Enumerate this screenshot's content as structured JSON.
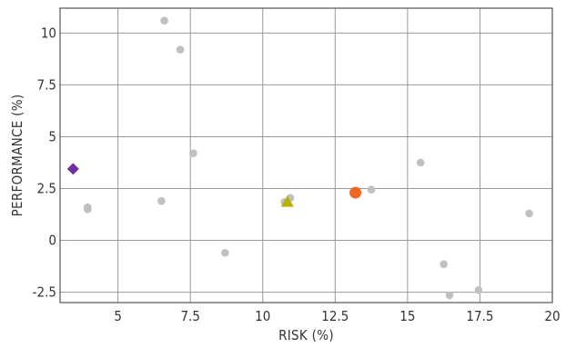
{
  "chart_data": {
    "type": "scatter",
    "xlabel": "RISK (%)",
    "ylabel": "PERFORMANCE (%)",
    "xlim": [
      3,
      20
    ],
    "ylim": [
      -3.0,
      11.2
    ],
    "x_ticks": [
      5,
      7.5,
      10,
      12.5,
      15,
      17.5,
      20
    ],
    "x_tick_labels": [
      "5",
      "7.5",
      "10",
      "12.5",
      "15",
      "17.5",
      "20"
    ],
    "y_ticks": [
      -2.5,
      0,
      2.5,
      5,
      7.5,
      10
    ],
    "y_tick_labels": [
      "-2.5",
      "0",
      "2.5",
      "5",
      "7.5",
      "10"
    ],
    "grid": true,
    "series": [
      {
        "marker": "circle",
        "color": "#c0c0c0",
        "points": [
          {
            "x": 6.6,
            "y": 10.6
          },
          {
            "x": 7.15,
            "y": 9.2
          },
          {
            "x": 7.6,
            "y": 4.2
          },
          {
            "x": 3.95,
            "y": 1.6
          },
          {
            "x": 3.95,
            "y": 1.5
          },
          {
            "x": 6.5,
            "y": 1.9
          },
          {
            "x": 8.7,
            "y": -0.6
          },
          {
            "x": 10.75,
            "y": 1.85
          },
          {
            "x": 10.95,
            "y": 2.05
          },
          {
            "x": 13.75,
            "y": 2.45
          },
          {
            "x": 15.45,
            "y": 3.75
          },
          {
            "x": 16.25,
            "y": -1.15
          },
          {
            "x": 16.45,
            "y": -2.65
          },
          {
            "x": 17.45,
            "y": -2.4
          },
          {
            "x": 19.2,
            "y": 1.3
          }
        ]
      },
      {
        "marker": "diamond",
        "color": "#7030a0",
        "points": [
          {
            "x": 3.45,
            "y": 3.45
          }
        ]
      },
      {
        "marker": "triangle",
        "color": "#b8b000",
        "points": [
          {
            "x": 10.85,
            "y": 1.85
          }
        ]
      },
      {
        "marker": "big-circle",
        "color": "#f26522",
        "points": [
          {
            "x": 13.2,
            "y": 2.3
          }
        ]
      }
    ],
    "colors": {
      "axis": "#333333",
      "grid": "#999999",
      "text": "#333333"
    }
  }
}
